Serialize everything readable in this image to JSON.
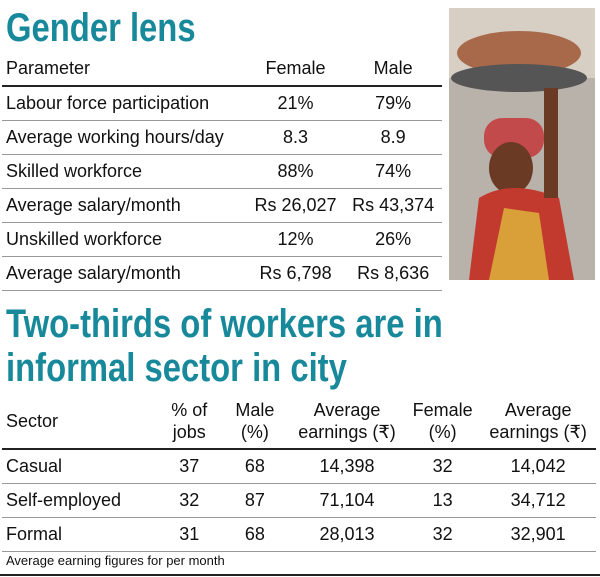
{
  "gender_lens": {
    "title": "Gender lens",
    "header": [
      "Parameter",
      "Female",
      "Male"
    ],
    "rows": [
      [
        "Labour force participation",
        "21%",
        "79%"
      ],
      [
        "Average working hours/day",
        "8.3",
        "8.9"
      ],
      [
        "Skilled workforce",
        "88%",
        "74%"
      ],
      [
        "Average salary/month",
        "Rs 26,027",
        "Rs 43,374"
      ],
      [
        "Unskilled workforce",
        "12%",
        "26%"
      ],
      [
        "Average salary/month",
        "Rs 6,798",
        "Rs 8,636"
      ]
    ]
  },
  "informal_sector": {
    "title": "Two-thirds of workers are in informal sector in city",
    "header": [
      "Sector",
      "% of jobs",
      "Male (%)",
      "Average earnings (₹)",
      "Female (%)",
      "Average earnings (₹)"
    ],
    "rows": [
      [
        "Casual",
        "37",
        "68",
        "14,398",
        "32",
        "14,042"
      ],
      [
        "Self-employed",
        "32",
        "87",
        "71,104",
        "13",
        "34,712"
      ],
      [
        "Formal",
        "31",
        "68",
        "28,013",
        "32",
        "32,901"
      ]
    ],
    "footnote": "Average earning figures for per month"
  }
}
